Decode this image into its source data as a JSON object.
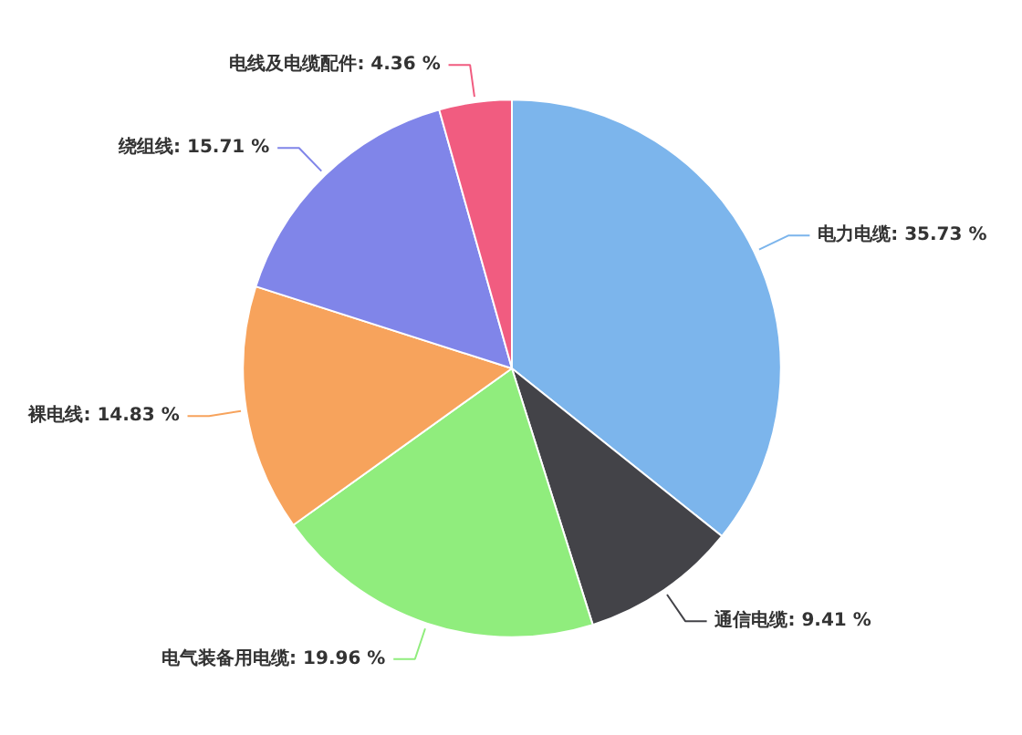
{
  "chart_data": {
    "type": "pie",
    "categories": [
      "电力电缆",
      "通信电缆",
      "电气装备用电缆",
      "裸电线",
      "绕组线",
      "电线及电缆配件"
    ],
    "values": [
      35.73,
      9.41,
      19.96,
      14.83,
      15.71,
      4.36
    ],
    "colors": [
      "#7cb5ec",
      "#434348",
      "#90ed7d",
      "#f7a35c",
      "#8085e9",
      "#f15c80"
    ],
    "value_labels": [
      "35.73 %",
      "9.41 %",
      "19.96 %",
      "14.83 %",
      "15.71 %",
      "4.36 %"
    ]
  }
}
